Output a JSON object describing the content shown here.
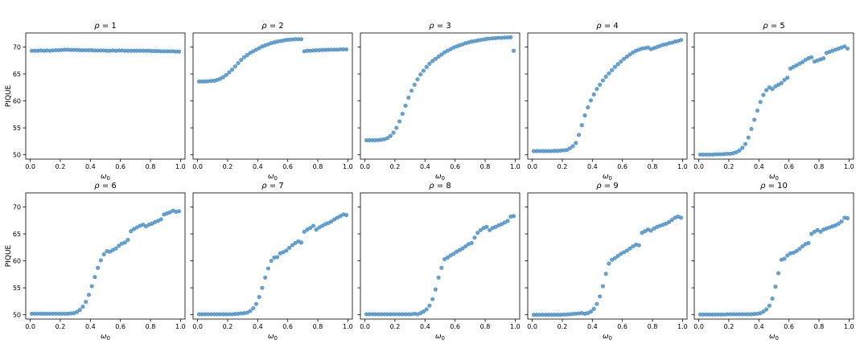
{
  "chart_data": {
    "type": "scatter",
    "marker_color": "#4a8fc7",
    "shared_y": true,
    "xlim": [
      -0.03,
      1.03
    ],
    "ylim": [
      49.2,
      72.6
    ],
    "xticks": [
      0.0,
      0.2,
      0.4,
      0.6,
      0.8,
      1.0
    ],
    "xtick_labels": [
      "0.0",
      "0.2",
      "0.4",
      "0.6",
      "0.8",
      "1.0"
    ],
    "yticks": [
      50,
      55,
      60,
      65,
      70
    ],
    "ytick_labels": [
      "50",
      "55",
      "60",
      "65",
      "70"
    ],
    "xlabel": "ω",
    "xlabel_sub": "0",
    "ylabel": "PIQUE",
    "x": [
      0.01,
      0.03,
      0.05,
      0.07,
      0.09,
      0.11,
      0.13,
      0.15,
      0.17,
      0.19,
      0.21,
      0.23,
      0.25,
      0.27,
      0.29,
      0.31,
      0.33,
      0.35,
      0.37,
      0.39,
      0.41,
      0.43,
      0.45,
      0.47,
      0.49,
      0.51,
      0.53,
      0.55,
      0.57,
      0.59,
      0.61,
      0.63,
      0.65,
      0.67,
      0.69,
      0.71,
      0.73,
      0.75,
      0.77,
      0.79,
      0.81,
      0.83,
      0.85,
      0.87,
      0.89,
      0.91,
      0.93,
      0.95,
      0.97,
      0.99
    ],
    "panels": [
      {
        "title_sym": "ρ",
        "title_val": "= 1",
        "y": [
          69.3,
          69.3,
          69.3,
          69.35,
          69.3,
          69.35,
          69.3,
          69.35,
          69.4,
          69.4,
          69.45,
          69.5,
          69.5,
          69.45,
          69.45,
          69.45,
          69.4,
          69.4,
          69.4,
          69.4,
          69.4,
          69.35,
          69.35,
          69.35,
          69.35,
          69.3,
          69.3,
          69.35,
          69.3,
          69.35,
          69.35,
          69.3,
          69.3,
          69.3,
          69.3,
          69.3,
          69.3,
          69.3,
          69.3,
          69.3,
          69.25,
          69.25,
          69.25,
          69.2,
          69.2,
          69.2,
          69.2,
          69.2,
          69.15,
          69.15
        ]
      },
      {
        "title_sym": "ρ",
        "title_val": "= 2",
        "y": [
          63.6,
          63.6,
          63.6,
          63.65,
          63.7,
          63.75,
          63.9,
          64.1,
          64.4,
          64.8,
          65.3,
          65.8,
          66.4,
          67.0,
          67.6,
          68.1,
          68.5,
          68.9,
          69.2,
          69.5,
          69.8,
          70.1,
          70.3,
          70.5,
          70.7,
          70.85,
          71.0,
          71.1,
          71.2,
          71.3,
          71.35,
          71.4,
          71.45,
          71.45,
          71.45,
          69.2,
          69.3,
          69.3,
          69.35,
          69.4,
          69.4,
          69.45,
          69.45,
          69.5,
          69.5,
          69.5,
          69.5,
          69.55,
          69.55,
          69.55
        ]
      },
      {
        "title_sym": "ρ",
        "title_val": "= 3",
        "y": [
          52.7,
          52.7,
          52.7,
          52.7,
          52.75,
          52.8,
          52.9,
          53.1,
          53.5,
          54.1,
          55.0,
          56.2,
          57.6,
          59.1,
          60.6,
          61.9,
          63.0,
          64.0,
          64.9,
          65.6,
          66.3,
          66.9,
          67.4,
          67.8,
          68.2,
          68.6,
          69.0,
          69.3,
          69.6,
          69.9,
          70.1,
          70.3,
          70.5,
          70.7,
          70.85,
          71.0,
          71.1,
          71.2,
          71.3,
          71.4,
          71.5,
          71.55,
          71.6,
          71.65,
          71.7,
          71.7,
          71.75,
          71.75,
          71.8,
          69.3
        ]
      },
      {
        "title_sym": "ρ",
        "title_val": "= 4",
        "y": [
          50.7,
          50.7,
          50.7,
          50.7,
          50.7,
          50.7,
          50.7,
          50.75,
          50.75,
          50.8,
          50.85,
          50.9,
          51.2,
          51.6,
          52.2,
          53.7,
          55.5,
          57.3,
          58.8,
          60.1,
          61.2,
          62.2,
          63.0,
          63.8,
          64.5,
          65.1,
          65.7,
          66.3,
          66.8,
          67.3,
          67.8,
          68.2,
          68.6,
          69.0,
          69.3,
          69.5,
          69.7,
          69.8,
          69.9,
          69.6,
          69.8,
          70.0,
          70.2,
          70.4,
          70.5,
          70.7,
          70.8,
          71.0,
          71.1,
          71.3
        ]
      },
      {
        "title_sym": "ρ",
        "title_val": "= 5",
        "y": [
          50.05,
          50.05,
          50.05,
          50.05,
          50.05,
          50.1,
          50.1,
          50.1,
          50.15,
          50.2,
          50.2,
          50.3,
          50.5,
          50.8,
          51.3,
          52.0,
          53.2,
          54.8,
          56.5,
          58.2,
          59.8,
          61.1,
          62.0,
          62.5,
          62.2,
          62.7,
          63.0,
          63.3,
          63.9,
          64.3,
          66.0,
          66.3,
          66.6,
          66.9,
          67.2,
          67.6,
          67.9,
          68.1,
          67.3,
          67.5,
          67.7,
          67.9,
          68.9,
          69.1,
          69.3,
          69.5,
          69.7,
          69.9,
          70.1,
          69.7
        ]
      },
      {
        "title_sym": "ρ",
        "title_val": "= 6",
        "y": [
          50.2,
          50.2,
          50.2,
          50.2,
          50.2,
          50.2,
          50.2,
          50.2,
          50.2,
          50.2,
          50.2,
          50.2,
          50.2,
          50.25,
          50.3,
          50.5,
          50.9,
          51.5,
          52.4,
          53.7,
          55.3,
          57.0,
          58.7,
          60.1,
          61.2,
          61.8,
          61.7,
          62.0,
          62.3,
          62.8,
          63.2,
          63.4,
          63.9,
          65.5,
          65.9,
          66.2,
          66.5,
          66.7,
          66.4,
          66.7,
          66.9,
          67.2,
          67.4,
          67.7,
          68.6,
          68.8,
          69.0,
          69.3,
          69.1,
          69.2
        ]
      },
      {
        "title_sym": "ρ",
        "title_val": "= 7",
        "y": [
          50.1,
          50.1,
          50.1,
          50.1,
          50.1,
          50.1,
          50.1,
          50.1,
          50.1,
          50.1,
          50.1,
          50.1,
          50.15,
          50.2,
          50.25,
          50.3,
          50.4,
          50.7,
          51.2,
          52.0,
          53.3,
          55.0,
          56.9,
          58.6,
          60.0,
          60.6,
          60.7,
          61.4,
          61.6,
          61.9,
          62.4,
          62.9,
          63.3,
          63.6,
          63.4,
          65.4,
          65.8,
          66.1,
          66.5,
          65.8,
          66.2,
          66.5,
          66.8,
          67.0,
          67.3,
          67.7,
          68.0,
          68.3,
          68.6,
          68.5
        ]
      },
      {
        "title_sym": "ρ",
        "title_val": "= 8",
        "y": [
          50.1,
          50.1,
          50.1,
          50.1,
          50.1,
          50.1,
          50.1,
          50.1,
          50.1,
          50.1,
          50.1,
          50.1,
          50.1,
          50.1,
          50.1,
          50.1,
          50.2,
          50.1,
          50.3,
          50.6,
          51.0,
          51.7,
          52.9,
          54.7,
          56.9,
          58.7,
          60.3,
          60.6,
          61.0,
          61.3,
          61.7,
          62.0,
          62.3,
          62.7,
          63.1,
          63.3,
          64.3,
          65.2,
          65.7,
          66.1,
          66.3,
          65.7,
          66.1,
          66.3,
          66.6,
          66.8,
          67.1,
          67.4,
          68.2,
          68.3
        ]
      },
      {
        "title_sym": "ρ",
        "title_val": "= 9",
        "y": [
          50.0,
          50.0,
          50.0,
          50.0,
          50.0,
          50.0,
          50.0,
          50.0,
          50.0,
          50.0,
          50.05,
          50.05,
          50.1,
          50.15,
          50.2,
          50.25,
          50.3,
          50.2,
          50.3,
          50.6,
          51.1,
          52.0,
          53.4,
          55.3,
          57.6,
          59.5,
          60.2,
          60.5,
          60.9,
          61.3,
          61.6,
          61.9,
          62.3,
          62.7,
          63.0,
          62.9,
          65.2,
          65.5,
          65.8,
          65.6,
          66.0,
          66.3,
          66.5,
          66.7,
          66.9,
          67.2,
          67.6,
          68.0,
          68.2,
          68.0
        ]
      },
      {
        "title_sym": "ρ",
        "title_val": "= 10",
        "y": [
          50.05,
          50.05,
          50.05,
          50.05,
          50.05,
          50.05,
          50.05,
          50.05,
          50.05,
          50.1,
          50.1,
          50.1,
          50.1,
          50.1,
          50.1,
          50.1,
          50.1,
          50.1,
          50.15,
          50.2,
          50.3,
          50.6,
          51.0,
          51.7,
          53.0,
          55.2,
          57.7,
          60.2,
          60.4,
          61.0,
          61.4,
          61.5,
          61.8,
          62.2,
          62.7,
          63.1,
          63.3,
          65.0,
          65.4,
          65.7,
          65.4,
          65.8,
          66.0,
          66.2,
          66.4,
          66.6,
          66.9,
          67.3,
          68.0,
          67.9
        ]
      }
    ]
  }
}
